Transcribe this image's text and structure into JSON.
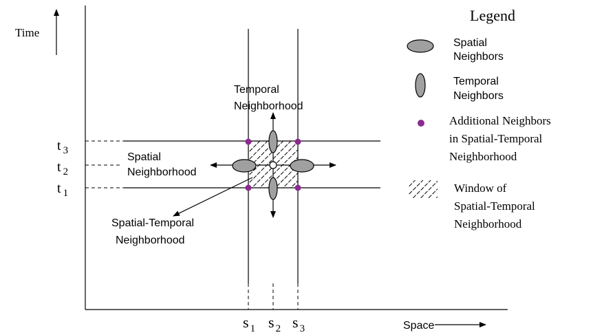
{
  "axes": {
    "y_label": "Time",
    "x_label": "Space"
  },
  "time_ticks": [
    {
      "base": "t",
      "sub": "3"
    },
    {
      "base": "t",
      "sub": "2"
    },
    {
      "base": "t",
      "sub": "1"
    }
  ],
  "space_ticks": [
    {
      "base": "s",
      "sub": "1"
    },
    {
      "base": "s",
      "sub": "2"
    },
    {
      "base": "s",
      "sub": "3"
    }
  ],
  "annotations": {
    "temporal_neighborhood": [
      "Temporal",
      "Neighborhood"
    ],
    "spatial_neighborhood": [
      "Spatial",
      "Neighborhood"
    ],
    "spatial_temporal_neighborhood": [
      "Spatial-Temporal",
      "Neighborhood"
    ]
  },
  "legend": {
    "title": "Legend",
    "items": [
      {
        "symbol": "horizontal-ellipse",
        "lines": [
          "Spatial",
          "Neighbors"
        ]
      },
      {
        "symbol": "vertical-ellipse",
        "lines": [
          "Temporal",
          "Neighbors"
        ]
      },
      {
        "symbol": "purple-dot",
        "lines": [
          "Additional Neighbors",
          "in Spatial-Temporal",
          "Neighborhood"
        ]
      },
      {
        "symbol": "hatched-patch",
        "lines": [
          "Window of",
          "Spatial-Temporal",
          "Neighborhood"
        ]
      }
    ]
  },
  "colors": {
    "neighbor_fill": "#a0a0a0",
    "additional_dot": "#8b2a8f",
    "line": "#000000"
  }
}
